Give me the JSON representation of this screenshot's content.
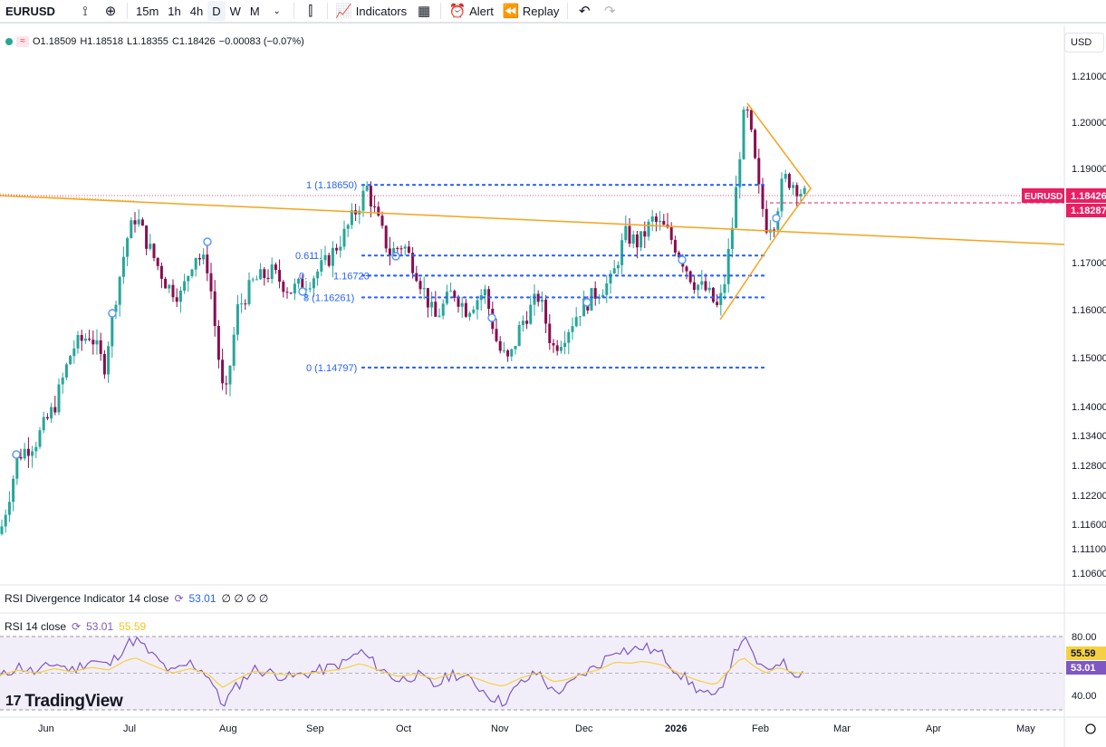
{
  "toolbar": {
    "symbol": "EURUSD",
    "intervals": [
      "15m",
      "1h",
      "4h",
      "D",
      "W",
      "M"
    ],
    "active_interval": "D",
    "indicators_label": "Indicators",
    "alert_label": "Alert",
    "replay_label": "Replay"
  },
  "legend": {
    "open": "O1.18509",
    "high": "H1.18518",
    "low": "L1.18355",
    "close": "C1.18426",
    "change": "−0.00083 (−0.07%)"
  },
  "currency": "USD",
  "price_axis": {
    "ticks": [
      "1.21000",
      "1.20000",
      "1.19000",
      "1.17000",
      "1.16000",
      "1.15000",
      "1.14000",
      "1.13400",
      "1.12800",
      "1.12200",
      "1.11600",
      "1.11100",
      "1.10600"
    ],
    "current_label": "EURUSD",
    "current_price": "1.18426",
    "secondary_price": "1.18287"
  },
  "time_axis": [
    "Jun",
    "Jul",
    "Aug",
    "Sep",
    "Oct",
    "Nov",
    "Dec",
    "2026",
    "Feb",
    "Mar",
    "Apr",
    "May"
  ],
  "fibonacci": [
    {
      "label": "1 (1.18650)",
      "price": 1.1865
    },
    {
      "label": "0.618 (1.17...)",
      "price": 1.1715
    },
    {
      "label": "0.5 (1.16723)",
      "price": 1.16723
    },
    {
      "label": "0.38 (1.16261)",
      "price": 1.16261
    },
    {
      "label": "0 (1.14797)",
      "price": 1.14797
    }
  ],
  "fib_partial": {
    "a": "0.61",
    "b": "1.",
    "c": "0.",
    "d": "1.16723",
    "e": "8 (1.16261)"
  },
  "indicators": {
    "divergence_name": "RSI Divergence Indicator 14 close",
    "divergence_value": "53.01",
    "divergence_extra": "∅ ∅ ∅ ∅",
    "rsi_name": "RSI 14 close",
    "rsi_value": "53.01",
    "rsi_ma_value": "55.59",
    "rsi_levels": [
      "80.00",
      "40.00"
    ]
  },
  "brand": "TradingView",
  "colors": {
    "up": "#26a69a",
    "down": "#880e4f",
    "fib": "#2962ff",
    "trend": "#f7a21b",
    "price_tag": "#e91e63",
    "rsi_line": "#7e57c2",
    "rsi_ma": "#f5d142"
  }
}
